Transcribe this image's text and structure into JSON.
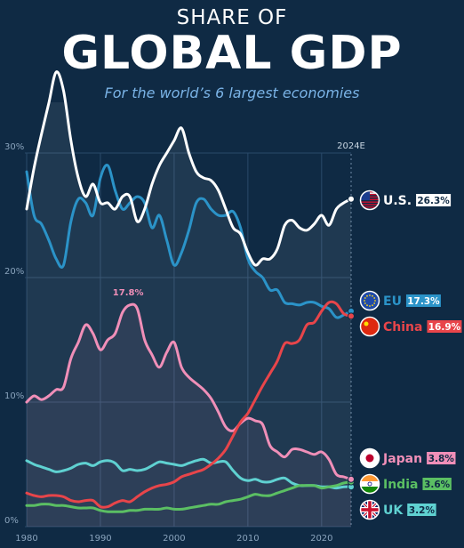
{
  "header": {
    "kicker": "SHARE OF",
    "title": "GLOBAL GDP",
    "subtitle": "For the world’s 6 largest economies"
  },
  "colors": {
    "background": "#0f2a44",
    "US": "#ffffff",
    "EU": "#2b93c8",
    "China": "#e8454a",
    "Japan": "#f08fb8",
    "India": "#5bbf63",
    "UK": "#5fd1d1",
    "grid": "#2a4a6a",
    "tick": "#8aa4bd"
  },
  "chart_data": {
    "type": "line",
    "x_marker_label": "2024E",
    "ylim": [
      0,
      30
    ],
    "yticks": [
      0,
      10,
      20,
      30
    ],
    "ytick_labels": [
      "0%",
      "10%",
      "20%",
      "30%"
    ],
    "xlim": [
      1980,
      2024
    ],
    "xticks": [
      1980,
      1990,
      2000,
      2010,
      2020
    ],
    "peak_annotation": {
      "series": "Japan",
      "x": 1994,
      "y": 17.8,
      "label": "17.8%"
    },
    "series": [
      {
        "name": "U.S.",
        "flag": "us-flag-icon",
        "end_label": "26.3%",
        "x": [
          1980,
          1981,
          1982,
          1983,
          1984,
          1985,
          1986,
          1987,
          1988,
          1989,
          1990,
          1991,
          1992,
          1993,
          1994,
          1995,
          1996,
          1997,
          1998,
          1999,
          2000,
          2001,
          2002,
          2003,
          2004,
          2005,
          2006,
          2007,
          2008,
          2009,
          2010,
          2011,
          2012,
          2013,
          2014,
          2015,
          2016,
          2017,
          2018,
          2019,
          2020,
          2021,
          2022,
          2023,
          2024
        ],
        "y": [
          25.5,
          28.8,
          31.5,
          34.0,
          36.5,
          35.0,
          31.0,
          28.0,
          26.5,
          27.5,
          26.0,
          26.0,
          25.5,
          26.5,
          26.5,
          24.5,
          25.5,
          27.5,
          29.0,
          30.0,
          31.0,
          32.0,
          30.0,
          28.5,
          28.0,
          27.8,
          27.0,
          25.5,
          24.0,
          23.5,
          22.0,
          21.0,
          21.5,
          21.5,
          22.3,
          24.2,
          24.6,
          24.0,
          23.8,
          24.3,
          25.0,
          24.2,
          25.5,
          26.0,
          26.3
        ]
      },
      {
        "name": "EU",
        "flag": "eu-flag-icon",
        "end_label": "17.3%",
        "x": [
          1980,
          1981,
          1982,
          1983,
          1984,
          1985,
          1986,
          1987,
          1988,
          1989,
          1990,
          1991,
          1992,
          1993,
          1994,
          1995,
          1996,
          1997,
          1998,
          1999,
          2000,
          2001,
          2002,
          2003,
          2004,
          2005,
          2006,
          2007,
          2008,
          2009,
          2010,
          2011,
          2012,
          2013,
          2014,
          2015,
          2016,
          2017,
          2018,
          2019,
          2020,
          2021,
          2022,
          2023,
          2024
        ],
        "y": [
          28.5,
          25.0,
          24.3,
          23.0,
          21.5,
          21.0,
          24.5,
          26.3,
          26.0,
          25.0,
          28.0,
          29.0,
          27.0,
          25.5,
          26.0,
          26.5,
          26.0,
          24.0,
          25.0,
          23.0,
          21.0,
          22.0,
          23.8,
          26.0,
          26.3,
          25.5,
          25.0,
          25.0,
          25.3,
          24.0,
          21.5,
          20.5,
          20.0,
          19.0,
          19.0,
          18.0,
          17.9,
          17.8,
          18.0,
          18.0,
          17.7,
          17.5,
          16.8,
          17.0,
          17.3
        ]
      },
      {
        "name": "China",
        "flag": "china-flag-icon",
        "end_label": "16.9%",
        "x": [
          1980,
          1981,
          1982,
          1983,
          1984,
          1985,
          1986,
          1987,
          1988,
          1989,
          1990,
          1991,
          1992,
          1993,
          1994,
          1995,
          1996,
          1997,
          1998,
          1999,
          2000,
          2001,
          2002,
          2003,
          2004,
          2005,
          2006,
          2007,
          2008,
          2009,
          2010,
          2011,
          2012,
          2013,
          2014,
          2015,
          2016,
          2017,
          2018,
          2019,
          2020,
          2021,
          2022,
          2023,
          2024
        ],
        "y": [
          2.7,
          2.5,
          2.4,
          2.5,
          2.5,
          2.4,
          2.1,
          2.0,
          2.1,
          2.1,
          1.6,
          1.6,
          1.9,
          2.1,
          2.0,
          2.4,
          2.8,
          3.1,
          3.3,
          3.4,
          3.6,
          4.0,
          4.2,
          4.4,
          4.6,
          5.0,
          5.5,
          6.2,
          7.3,
          8.4,
          9.1,
          10.2,
          11.3,
          12.3,
          13.3,
          14.7,
          14.7,
          15.0,
          16.2,
          16.4,
          17.3,
          18.0,
          17.9,
          17.1,
          16.9
        ]
      },
      {
        "name": "Japan",
        "flag": "japan-flag-icon",
        "end_label": "3.8%",
        "x": [
          1980,
          1981,
          1982,
          1983,
          1984,
          1985,
          1986,
          1987,
          1988,
          1989,
          1990,
          1991,
          1992,
          1993,
          1994,
          1995,
          1996,
          1997,
          1998,
          1999,
          2000,
          2001,
          2002,
          2003,
          2004,
          2005,
          2006,
          2007,
          2008,
          2009,
          2010,
          2011,
          2012,
          2013,
          2014,
          2015,
          2016,
          2017,
          2018,
          2019,
          2020,
          2021,
          2022,
          2023,
          2024
        ],
        "y": [
          10.0,
          10.5,
          10.2,
          10.5,
          11.0,
          11.2,
          13.5,
          14.8,
          16.2,
          15.5,
          14.2,
          15.0,
          15.5,
          17.2,
          17.8,
          17.5,
          15.0,
          13.8,
          12.8,
          14.0,
          14.8,
          12.8,
          12.0,
          11.5,
          11.0,
          10.3,
          9.2,
          8.0,
          7.7,
          8.3,
          8.7,
          8.5,
          8.2,
          6.5,
          6.0,
          5.6,
          6.2,
          6.2,
          6.0,
          5.8,
          6.0,
          5.4,
          4.2,
          4.0,
          3.8
        ]
      },
      {
        "name": "India",
        "flag": "india-flag-icon",
        "end_label": "3.6%",
        "x": [
          1980,
          1981,
          1982,
          1983,
          1984,
          1985,
          1986,
          1987,
          1988,
          1989,
          1990,
          1991,
          1992,
          1993,
          1994,
          1995,
          1996,
          1997,
          1998,
          1999,
          2000,
          2001,
          2002,
          2003,
          2004,
          2005,
          2006,
          2007,
          2008,
          2009,
          2010,
          2011,
          2012,
          2013,
          2014,
          2015,
          2016,
          2017,
          2018,
          2019,
          2020,
          2021,
          2022,
          2023,
          2024
        ],
        "y": [
          1.7,
          1.7,
          1.8,
          1.8,
          1.7,
          1.7,
          1.6,
          1.5,
          1.5,
          1.5,
          1.3,
          1.2,
          1.2,
          1.2,
          1.3,
          1.3,
          1.4,
          1.4,
          1.4,
          1.5,
          1.4,
          1.4,
          1.5,
          1.6,
          1.7,
          1.8,
          1.8,
          2.0,
          2.1,
          2.2,
          2.4,
          2.6,
          2.5,
          2.5,
          2.7,
          2.9,
          3.1,
          3.3,
          3.3,
          3.3,
          3.1,
          3.2,
          3.3,
          3.5,
          3.6
        ]
      },
      {
        "name": "UK",
        "flag": "uk-flag-icon",
        "end_label": "3.2%",
        "x": [
          1980,
          1981,
          1982,
          1983,
          1984,
          1985,
          1986,
          1987,
          1988,
          1989,
          1990,
          1991,
          1992,
          1993,
          1994,
          1995,
          1996,
          1997,
          1998,
          1999,
          2000,
          2001,
          2002,
          2003,
          2004,
          2005,
          2006,
          2007,
          2008,
          2009,
          2010,
          2011,
          2012,
          2013,
          2014,
          2015,
          2016,
          2017,
          2018,
          2019,
          2020,
          2021,
          2022,
          2023,
          2024
        ],
        "y": [
          5.3,
          5.0,
          4.8,
          4.6,
          4.4,
          4.5,
          4.7,
          5.0,
          5.1,
          4.9,
          5.2,
          5.3,
          5.1,
          4.5,
          4.6,
          4.5,
          4.6,
          4.9,
          5.2,
          5.1,
          5.0,
          4.9,
          5.1,
          5.3,
          5.4,
          5.1,
          5.2,
          5.2,
          4.5,
          3.9,
          3.7,
          3.8,
          3.6,
          3.6,
          3.8,
          3.9,
          3.5,
          3.3,
          3.3,
          3.3,
          3.2,
          3.2,
          3.1,
          3.2,
          3.2
        ]
      }
    ]
  }
}
